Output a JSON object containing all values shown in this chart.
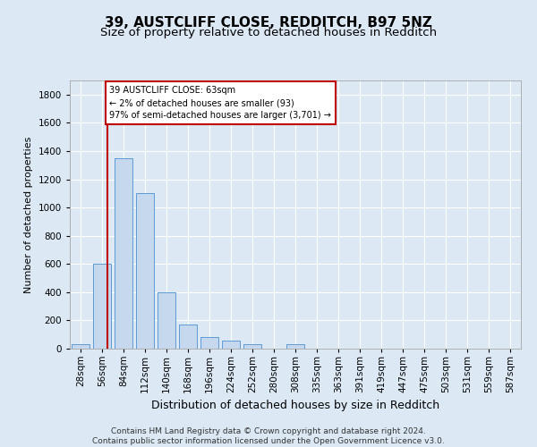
{
  "title1": "39, AUSTCLIFF CLOSE, REDDITCH, B97 5NZ",
  "title2": "Size of property relative to detached houses in Redditch",
  "xlabel": "Distribution of detached houses by size in Redditch",
  "ylabel": "Number of detached properties",
  "footnote": "Contains HM Land Registry data © Crown copyright and database right 2024.\nContains public sector information licensed under the Open Government Licence v3.0.",
  "bin_labels": [
    "28sqm",
    "56sqm",
    "84sqm",
    "112sqm",
    "140sqm",
    "168sqm",
    "196sqm",
    "224sqm",
    "252sqm",
    "280sqm",
    "308sqm",
    "335sqm",
    "363sqm",
    "391sqm",
    "419sqm",
    "447sqm",
    "475sqm",
    "503sqm",
    "531sqm",
    "559sqm",
    "587sqm"
  ],
  "bar_values": [
    30,
    600,
    1350,
    1100,
    400,
    170,
    80,
    55,
    30,
    0,
    30,
    0,
    0,
    0,
    0,
    0,
    0,
    0,
    0,
    0,
    0
  ],
  "bar_color": "#c5d8ed",
  "bar_edge_color": "#5b9bd5",
  "property_line_color": "#c00000",
  "property_line_x": 1.25,
  "annotation_text": "39 AUSTCLIFF CLOSE: 63sqm\n← 2% of detached houses are smaller (93)\n97% of semi-detached houses are larger (3,701) →",
  "annotation_box_color": "#c00000",
  "ylim": [
    0,
    1900
  ],
  "yticks": [
    0,
    200,
    400,
    600,
    800,
    1000,
    1200,
    1400,
    1600,
    1800
  ],
  "bg_color": "#dce9f5",
  "plot_bg_color": "#dce9f5",
  "grid_color": "white",
  "title_fontsize": 11,
  "subtitle_fontsize": 9.5,
  "ylabel_fontsize": 8,
  "xlabel_fontsize": 9,
  "tick_fontsize": 7.5,
  "footnote_fontsize": 6.5
}
